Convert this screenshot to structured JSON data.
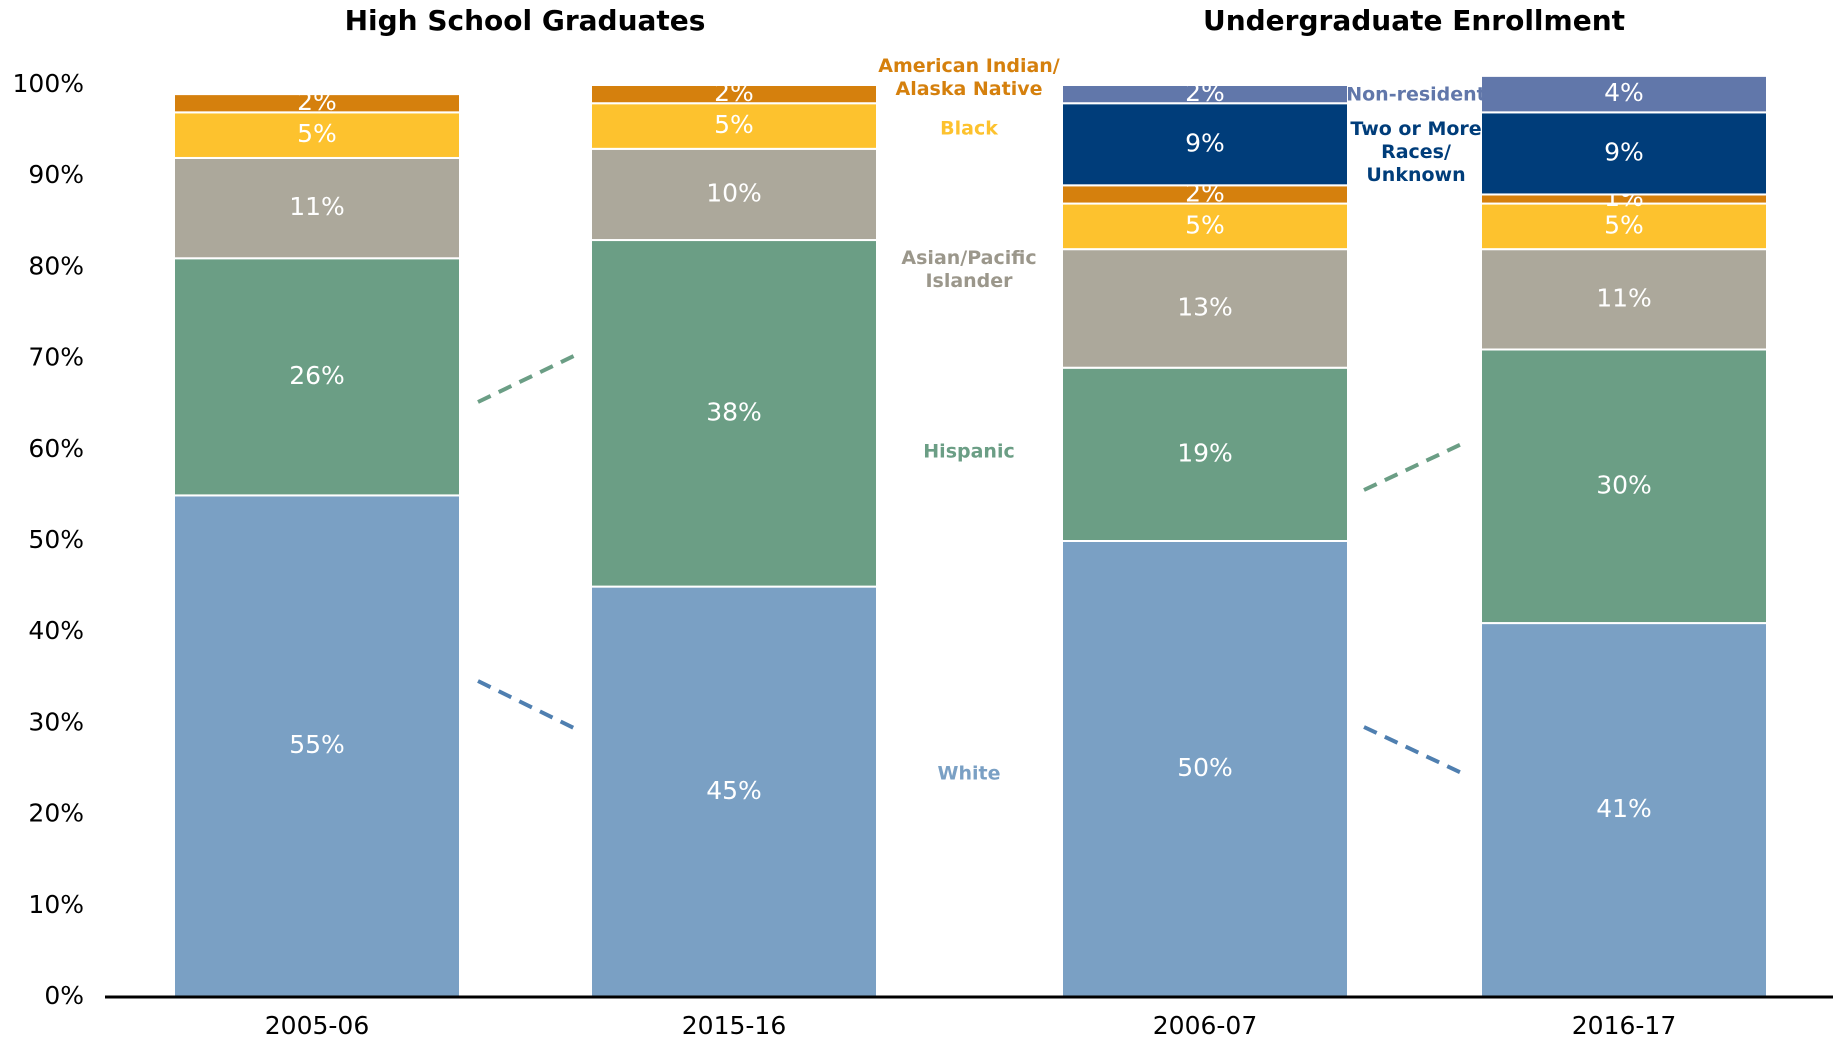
{
  "chart_data": {
    "type": "stacked_bar",
    "group_titles": [
      "High School Graduates",
      "Undergraduate Enrollment"
    ],
    "categories": [
      "2005-06",
      "2015-16",
      "2006-07",
      "2016-17"
    ],
    "series": [
      {
        "name": "White",
        "color": "#7aa0c4",
        "values": [
          55,
          45,
          50,
          41
        ],
        "value_labels": [
          "55%",
          "45%",
          "50%",
          "41%"
        ]
      },
      {
        "name": "Hispanic",
        "color": "#6b9e85",
        "values": [
          26,
          38,
          19,
          30
        ],
        "value_labels": [
          "26%",
          "38%",
          "19%",
          "30%"
        ]
      },
      {
        "name": "Asian/Pacific\nIslander",
        "color": "#aca89b",
        "values": [
          11,
          10,
          13,
          11
        ],
        "value_labels": [
          "11%",
          "10%",
          "13%",
          "11%"
        ]
      },
      {
        "name": "Black",
        "color": "#fdc22e",
        "values": [
          5,
          5,
          5,
          5
        ],
        "value_labels": [
          "5%",
          "5%",
          "5%",
          "5%"
        ]
      },
      {
        "name": "American Indian/\nAlaska Native",
        "color": "#d5800d",
        "values": [
          2,
          2,
          2,
          1
        ],
        "value_labels": [
          "2%",
          "2%",
          "2%",
          "1%"
        ]
      },
      {
        "name": "Two or More\nRaces/\nUnknown",
        "color": "#003d7a",
        "values": [
          null,
          null,
          9,
          9
        ],
        "value_labels": [
          null,
          null,
          "9%",
          "9%"
        ]
      },
      {
        "name": "Non-resident",
        "color": "#6177aa",
        "values": [
          null,
          null,
          2,
          4
        ],
        "value_labels": [
          null,
          null,
          "2%",
          "4%"
        ]
      }
    ],
    "ylim": [
      0,
      100
    ],
    "yticks": [
      {
        "value": 0,
        "label": "0%"
      },
      {
        "value": 10,
        "label": "10%"
      },
      {
        "value": 20,
        "label": "20%"
      },
      {
        "value": 30,
        "label": "30%"
      },
      {
        "value": 40,
        "label": "40%"
      },
      {
        "value": 50,
        "label": "50%"
      },
      {
        "value": 60,
        "label": "60%"
      },
      {
        "value": 70,
        "label": "70%"
      },
      {
        "value": 80,
        "label": "80%"
      },
      {
        "value": 90,
        "label": "90%"
      },
      {
        "value": 100,
        "label": "100%"
      }
    ]
  }
}
